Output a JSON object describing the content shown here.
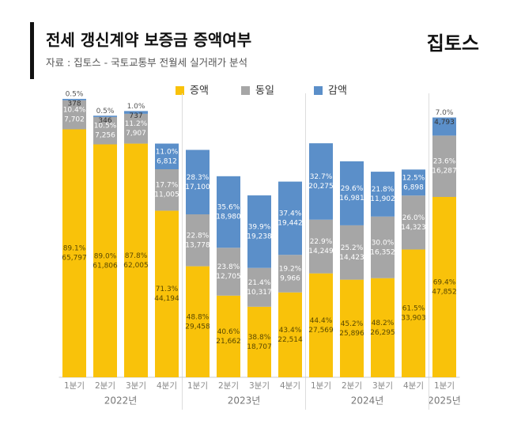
{
  "chart_data": {
    "type": "stacked_bar",
    "title": "전세 갱신계약 보증금 증액여부",
    "subtitle": "자료 : 집토스 - 국토교통부 전월세 실거래가 분석",
    "brand": "집토스",
    "categories": [
      "1분기",
      "2분기",
      "3분기",
      "4분기",
      "1분기",
      "2분기",
      "3분기",
      "4분기",
      "1분기",
      "2분기",
      "3분기",
      "4분기",
      "1분기"
    ],
    "groups": [
      {
        "label": "2022년",
        "size": 4
      },
      {
        "label": "2023년",
        "size": 4
      },
      {
        "label": "2024년",
        "size": 4
      },
      {
        "label": "2025년",
        "size": 1
      }
    ],
    "series": [
      {
        "name": "증액",
        "color": "#f9c20a",
        "values": [
          65797,
          61806,
          62005,
          44194,
          29458,
          21662,
          18707,
          22514,
          27569,
          25896,
          26295,
          33903,
          47852
        ],
        "value_labels": [
          "65,797",
          "61,806",
          "62,005",
          "44,194",
          "29,458",
          "21,662",
          "18,707",
          "22,514",
          "27,569",
          "25,896",
          "26,295",
          "33,903",
          "47,852"
        ],
        "shares": [
          89.1,
          89.0,
          87.8,
          71.3,
          48.8,
          40.6,
          38.8,
          43.4,
          44.4,
          45.2,
          48.2,
          61.5,
          69.4
        ],
        "share_labels": [
          "89.1%",
          "89.0%",
          "87.8%",
          "71.3%",
          "48.8%",
          "40.6%",
          "38.8%",
          "43.4%",
          "44.4%",
          "45.2%",
          "48.2%",
          "61.5%",
          "69.4%"
        ]
      },
      {
        "name": "동일",
        "color": "#a6a6a6",
        "values": [
          7702,
          7256,
          7907,
          11005,
          13778,
          12705,
          10317,
          9966,
          14249,
          14423,
          16352,
          14323,
          16287
        ],
        "value_labels": [
          "7,702",
          "7,256",
          "7,907",
          "11,005",
          "13,778",
          "12,705",
          "10,317",
          "9,966",
          "14,249",
          "14,423",
          "16,352",
          "14,323",
          "16,287"
        ],
        "shares": [
          10.4,
          10.5,
          11.2,
          17.7,
          22.8,
          23.8,
          21.4,
          19.2,
          22.9,
          25.2,
          30.0,
          26.0,
          23.6
        ],
        "share_labels": [
          "10.4%",
          "10.5%",
          "11.2%",
          "17.7%",
          "22.8%",
          "23.8%",
          "21.4%",
          "19.2%",
          "22.9%",
          "25.2%",
          "30.0%",
          "26.0%",
          "23.6%"
        ]
      },
      {
        "name": "감액",
        "color": "#5b8fc9",
        "values": [
          378,
          346,
          737,
          6812,
          17100,
          18980,
          19238,
          19442,
          20275,
          16981,
          11902,
          6898,
          4793
        ],
        "value_labels": [
          "378",
          "346",
          "737",
          "6,812",
          "17,100",
          "18,980",
          "19,238",
          "19,442",
          "20,275",
          "16,981",
          "11,902",
          "6,898",
          "4,793"
        ],
        "shares": [
          0.5,
          0.5,
          1.0,
          11.0,
          28.3,
          35.6,
          39.9,
          37.4,
          32.7,
          29.6,
          21.8,
          12.5,
          7.0
        ],
        "share_labels": [
          "0.5%",
          "0.5%",
          "1.0%",
          "11.0%",
          "28.3%",
          "35.6%",
          "39.9%",
          "37.4%",
          "32.7%",
          "29.6%",
          "21.8%",
          "12.5%",
          "7.0%"
        ]
      }
    ]
  }
}
